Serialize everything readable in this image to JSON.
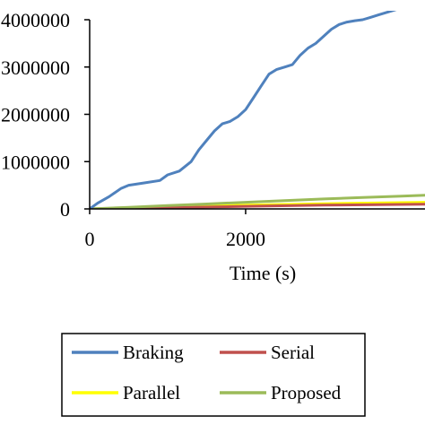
{
  "chart_data": {
    "type": "line",
    "xlabel": "Time (s)",
    "ylabel": "",
    "x_ticks": [
      "0",
      "2000"
    ],
    "y_ticks": [
      "0",
      "1000000",
      "2000000",
      "3000000",
      "4000000"
    ],
    "xlim": [
      0,
      4300
    ],
    "ylim": [
      0,
      4000000
    ],
    "grid": false,
    "legend_position": "bottom",
    "series": [
      {
        "name": "Braking",
        "color": "#4f81bd",
        "x": [
          0,
          100,
          250,
          400,
          500,
          700,
          900,
          1000,
          1150,
          1300,
          1400,
          1500,
          1600,
          1700,
          1800,
          1900,
          2000,
          2100,
          2200,
          2300,
          2400,
          2500,
          2600,
          2700,
          2800,
          2900,
          3000,
          3100,
          3200,
          3300,
          3400,
          3500,
          3600,
          3700,
          3800,
          3900,
          4000,
          4100,
          4200,
          4300
        ],
        "y": [
          0,
          120000,
          260000,
          430000,
          500000,
          550000,
          600000,
          720000,
          800000,
          1000000,
          1250000,
          1450000,
          1650000,
          1800000,
          1850000,
          1950000,
          2100000,
          2350000,
          2600000,
          2850000,
          2950000,
          3000000,
          3050000,
          3250000,
          3400000,
          3500000,
          3650000,
          3800000,
          3900000,
          3950000,
          3980000,
          4000000,
          4050000,
          4100000,
          4150000,
          4200000,
          4250000,
          4300000,
          4350000,
          4400000
        ]
      },
      {
        "name": "Serial",
        "color": "#c0504d",
        "x": [
          0,
          1000,
          2000,
          3000,
          4300
        ],
        "y": [
          0,
          25000,
          55000,
          80000,
          100000
        ]
      },
      {
        "name": "Parallel",
        "color": "#ffff00",
        "x": [
          0,
          1000,
          2000,
          3000,
          4300
        ],
        "y": [
          0,
          40000,
          80000,
          110000,
          140000
        ]
      },
      {
        "name": "Proposed",
        "color": "#9bbb59",
        "x": [
          0,
          500,
          1000,
          1500,
          2000,
          2500,
          3000,
          3500,
          4000,
          4300
        ],
        "y": [
          0,
          35000,
          70000,
          105000,
          140000,
          175000,
          210000,
          240000,
          270000,
          290000
        ]
      }
    ]
  }
}
